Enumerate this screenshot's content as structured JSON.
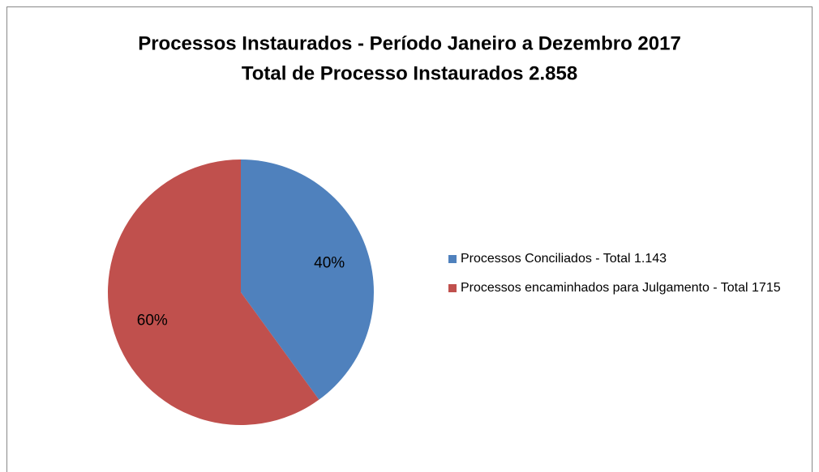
{
  "chart_data": {
    "type": "pie",
    "title": [
      "Processos Instaurados - Período Janeiro a Dezembro 2017",
      "Total de Processo Instaurados 2.858"
    ],
    "categories": [
      "Processos Conciliados - Total 1.143",
      "Processos encaminhados para Julgamento - Total 1715"
    ],
    "values": [
      40,
      60
    ],
    "value_labels": [
      "40%",
      "60%"
    ],
    "colors": [
      "#4f81bd",
      "#c0504d"
    ],
    "legend": "right"
  }
}
